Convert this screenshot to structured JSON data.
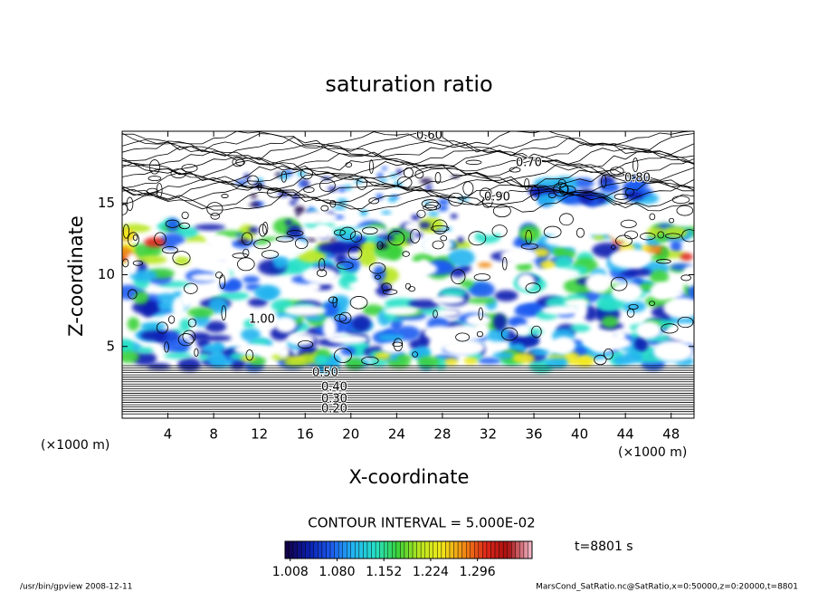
{
  "chart_data": {
    "type": "contour",
    "title": "saturation ratio",
    "x_label": "X-coordinate",
    "y_label": "Z-coordinate",
    "x_unit": "(×1000 m)",
    "y_unit": "(×1000 m)",
    "xlim": [
      0,
      50
    ],
    "ylim": [
      0,
      20
    ],
    "xticks": [
      4,
      8,
      12,
      16,
      20,
      24,
      28,
      32,
      36,
      40,
      44,
      48
    ],
    "yticks": [
      5,
      10,
      15
    ],
    "contour_interval": "CONTOUR INTERVAL = 5.000E-02",
    "contour_labels": [
      {
        "value": 0.6,
        "label": "0.60"
      },
      {
        "value": 0.7,
        "label": "0.70"
      },
      {
        "value": 0.8,
        "label": "0.80"
      },
      {
        "value": 0.9,
        "label": "0.90"
      },
      {
        "value": 1.0,
        "label": "1.00"
      },
      {
        "value": 0.5,
        "label": "0.50"
      },
      {
        "value": 0.4,
        "label": "0.40"
      },
      {
        "value": 0.3,
        "label": "0.30"
      },
      {
        "value": 0.2,
        "label": "0.20"
      }
    ],
    "colorbar_lim": [
      1.0,
      1.38
    ],
    "colorbar_ticks": [
      1.008,
      {
        "value": 1.08,
        "label": "1.080"
      },
      1.152,
      1.224,
      1.296
    ],
    "colormap": [
      "#12004a",
      "#0a1fb0",
      "#1d5cf0",
      "#22b4f0",
      "#26e0c8",
      "#3ad23a",
      "#b7e61e",
      "#f2e81a",
      "#f08a14",
      "#e0281a",
      "#a81010",
      "#f0b0c0"
    ],
    "time_label": "t=8801 s",
    "footer_left": "/usr/bin/gpview   2008-12-11",
    "footer_right": "MarsCond_SatRatio.nc@SatRatio,x=0:50000,z=0:20000,t=8801"
  }
}
